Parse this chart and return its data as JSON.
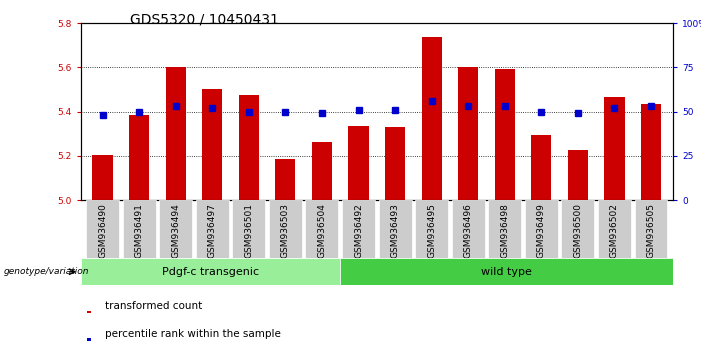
{
  "title": "GDS5320 / 10450431",
  "samples": [
    "GSM936490",
    "GSM936491",
    "GSM936494",
    "GSM936497",
    "GSM936501",
    "GSM936503",
    "GSM936504",
    "GSM936492",
    "GSM936493",
    "GSM936495",
    "GSM936496",
    "GSM936498",
    "GSM936499",
    "GSM936500",
    "GSM936502",
    "GSM936505"
  ],
  "bar_values": [
    5.205,
    5.385,
    5.6,
    5.5,
    5.475,
    5.185,
    5.26,
    5.335,
    5.33,
    5.735,
    5.6,
    5.59,
    5.295,
    5.225,
    5.465,
    5.435
  ],
  "percentile_values": [
    48,
    50,
    53,
    52,
    50,
    50,
    49,
    51,
    51,
    56,
    53,
    53,
    50,
    49,
    52,
    53
  ],
  "group1_label": "Pdgf-c transgenic",
  "group2_label": "wild type",
  "group1_count": 7,
  "group2_count": 9,
  "bar_color": "#cc0000",
  "dot_color": "#0000cc",
  "group1_color": "#99ee99",
  "group2_color": "#44cc44",
  "ylim_left": [
    5.0,
    5.8
  ],
  "ylim_right": [
    0,
    100
  ],
  "yticks_left": [
    5.0,
    5.2,
    5.4,
    5.6,
    5.8
  ],
  "yticks_right": [
    0,
    25,
    50,
    75,
    100
  ],
  "ylabel_left_color": "#cc0000",
  "ylabel_right_color": "#0000cc",
  "background_color": "#ffffff",
  "genotype_label": "genotype/variation",
  "legend_bar": "transformed count",
  "legend_dot": "percentile rank within the sample",
  "title_fontsize": 10,
  "tick_fontsize": 6.5,
  "label_fontsize": 8
}
